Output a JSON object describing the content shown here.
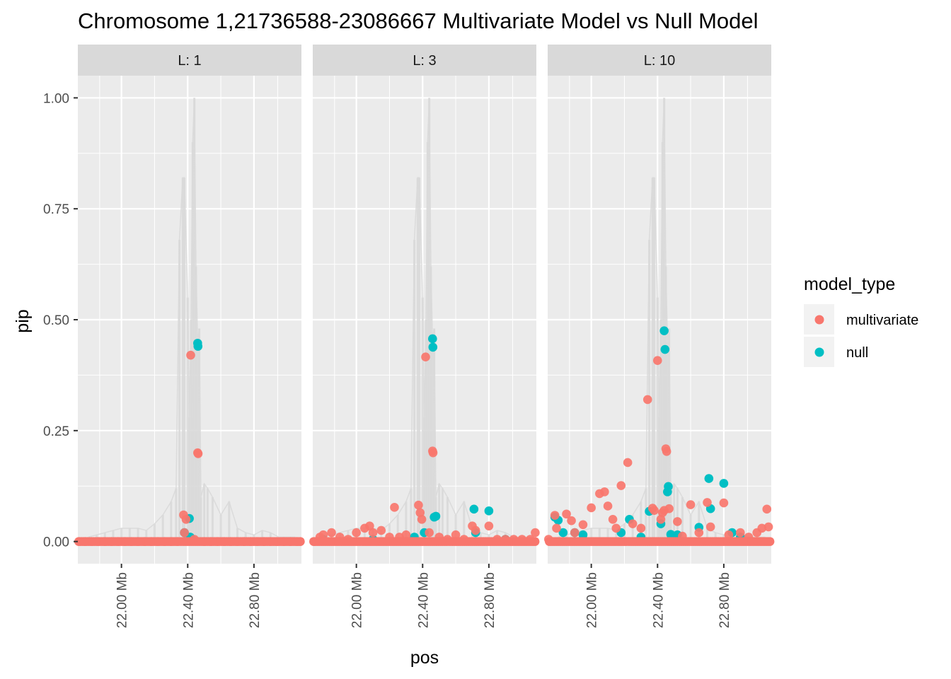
{
  "chart_data": {
    "type": "scatter",
    "title": "Chromosome 1,21736588-23086667 Multivariate Model vs Null Model",
    "xlabel": "pos",
    "ylabel": "pip",
    "xlim": [
      21736588,
      23086667
    ],
    "ylim": [
      -0.05,
      1.05
    ],
    "x_ticks": [
      22000000,
      22400000,
      22800000
    ],
    "x_tick_labels": [
      "22.00 Mb",
      "22.40 Mb",
      "22.80 Mb"
    ],
    "y_ticks": [
      0,
      0.25,
      0.5,
      0.75,
      1
    ],
    "y_tick_labels": [
      "0.00",
      "0.25",
      "0.50",
      "0.75",
      "1.00"
    ],
    "grid": true,
    "legend": {
      "title": "model_type",
      "position": "right",
      "entries": [
        {
          "label": "multivariate",
          "color": "#F8766D"
        },
        {
          "label": "null",
          "color": "#00BFC4"
        }
      ]
    },
    "background_series": {
      "description_color": "#d9d9d9",
      "x": [
        21800000,
        21850000,
        21900000,
        21950000,
        22000000,
        22050000,
        22100000,
        22150000,
        22200000,
        22250000,
        22300000,
        22330000,
        22350000,
        22370000,
        22380000,
        22400000,
        22410000,
        22420000,
        22430000,
        22440000,
        22450000,
        22460000,
        22470000,
        22480000,
        22500000,
        22520000,
        22550000,
        22600000,
        22650000,
        22700000,
        22750000,
        22800000,
        22850000,
        22900000,
        22950000,
        23000000,
        23050000
      ],
      "y": [
        0.01,
        0.015,
        0.02,
        0.025,
        0.03,
        0.03,
        0.03,
        0.025,
        0.04,
        0.06,
        0.09,
        0.12,
        0.68,
        0.82,
        0.82,
        0.55,
        0.28,
        0.5,
        0.9,
        1.0,
        0.62,
        0.45,
        0.48,
        0.1,
        0.13,
        0.12,
        0.1,
        0.06,
        0.09,
        0.03,
        0.02,
        0.015,
        0.025,
        0.02,
        0.01,
        0.01,
        0.01
      ]
    },
    "panels": [
      {
        "strip": "L: 1",
        "series": [
          {
            "name": "multivariate",
            "points": [
              [
                21742000,
                0
              ],
              [
                21780000,
                0
              ],
              [
                21820000,
                0
              ],
              [
                21860000,
                0
              ],
              [
                21900000,
                0
              ],
              [
                21940000,
                0
              ],
              [
                21980000,
                0
              ],
              [
                22020000,
                0
              ],
              [
                22060000,
                0
              ],
              [
                22100000,
                0
              ],
              [
                22140000,
                0
              ],
              [
                22180000,
                0
              ],
              [
                22220000,
                0
              ],
              [
                22260000,
                0
              ],
              [
                22300000,
                0
              ],
              [
                22340000,
                0
              ],
              [
                22375000,
                0.06
              ],
              [
                22380000,
                0.02
              ],
              [
                22390000,
                0.05
              ],
              [
                22418000,
                0.42
              ],
              [
                22460000,
                0.2
              ],
              [
                22463000,
                0.198
              ],
              [
                22440000,
                0.005
              ],
              [
                22500000,
                0
              ],
              [
                22540000,
                0
              ],
              [
                22580000,
                0
              ],
              [
                22620000,
                0
              ],
              [
                22660000,
                0
              ],
              [
                22700000,
                0
              ],
              [
                22740000,
                0
              ],
              [
                22780000,
                0
              ],
              [
                22820000,
                0
              ],
              [
                22860000,
                0
              ],
              [
                22900000,
                0
              ],
              [
                22940000,
                0
              ],
              [
                22980000,
                0
              ],
              [
                23020000,
                0
              ],
              [
                23060000,
                0
              ],
              [
                23080000,
                0
              ]
            ]
          },
          {
            "name": "null",
            "points": [
              [
                22380000,
                0.02
              ],
              [
                22410000,
                0.052
              ],
              [
                22460000,
                0.447
              ],
              [
                22462000,
                0.44
              ],
              [
                22415000,
                0.01
              ],
              [
                22425000,
                0.005
              ]
            ]
          }
        ]
      },
      {
        "strip": "L: 3",
        "series": [
          {
            "name": "multivariate",
            "points": [
              [
                21742000,
                0
              ],
              [
                21780000,
                0.01
              ],
              [
                21800000,
                0.015
              ],
              [
                21850000,
                0.02
              ],
              [
                21900000,
                0.01
              ],
              [
                21950000,
                0.005
              ],
              [
                22000000,
                0.02
              ],
              [
                22050000,
                0.03
              ],
              [
                22080000,
                0.035
              ],
              [
                22100000,
                0.02
              ],
              [
                22150000,
                0.025
              ],
              [
                22200000,
                0.01
              ],
              [
                22230000,
                0.077
              ],
              [
                22260000,
                0.01
              ],
              [
                22300000,
                0.015
              ],
              [
                22375000,
                0.082
              ],
              [
                22385000,
                0.065
              ],
              [
                22395000,
                0.05
              ],
              [
                22418000,
                0.416
              ],
              [
                22460000,
                0.204
              ],
              [
                22463000,
                0.2
              ],
              [
                22440000,
                0.02
              ],
              [
                22500000,
                0.01
              ],
              [
                22550000,
                0.005
              ],
              [
                22600000,
                0.015
              ],
              [
                22650000,
                0.005
              ],
              [
                22700000,
                0.035
              ],
              [
                22720000,
                0.025
              ],
              [
                22800000,
                0.035
              ],
              [
                22850000,
                0.005
              ],
              [
                22900000,
                0.005
              ],
              [
                22950000,
                0.005
              ],
              [
                23000000,
                0.005
              ],
              [
                23050000,
                0.005
              ],
              [
                23080000,
                0.02
              ]
            ]
          },
          {
            "name": "null",
            "points": [
              [
                21800000,
                0.005
              ],
              [
                22100000,
                0.005
              ],
              [
                22350000,
                0.01
              ],
              [
                22410000,
                0.02
              ],
              [
                22460000,
                0.457
              ],
              [
                22462000,
                0.438
              ],
              [
                22470000,
                0.055
              ],
              [
                22480000,
                0.057
              ],
              [
                22710000,
                0.073
              ],
              [
                22720000,
                0.02
              ],
              [
                22800000,
                0.069
              ],
              [
                22900000,
                0.005
              ]
            ]
          }
        ]
      },
      {
        "strip": "L: 10",
        "series": [
          {
            "name": "multivariate",
            "points": [
              [
                21742000,
                0.005
              ],
              [
                21780000,
                0.059
              ],
              [
                21790000,
                0.03
              ],
              [
                21850000,
                0.062
              ],
              [
                21880000,
                0.047
              ],
              [
                21900000,
                0.02
              ],
              [
                21950000,
                0.038
              ],
              [
                22000000,
                0.076
              ],
              [
                22050000,
                0.108
              ],
              [
                22080000,
                0.112
              ],
              [
                22100000,
                0.08
              ],
              [
                22130000,
                0.05
              ],
              [
                22150000,
                0.03
              ],
              [
                22180000,
                0.126
              ],
              [
                22220000,
                0.178
              ],
              [
                22250000,
                0.04
              ],
              [
                22300000,
                0.03
              ],
              [
                22340000,
                0.32
              ],
              [
                22370000,
                0.075
              ],
              [
                22380000,
                0.07
              ],
              [
                22400000,
                0.408
              ],
              [
                22420000,
                0.05
              ],
              [
                22430000,
                0.065
              ],
              [
                22440000,
                0.07
              ],
              [
                22450000,
                0.209
              ],
              [
                22455000,
                0.203
              ],
              [
                22470000,
                0.074
              ],
              [
                22520000,
                0.045
              ],
              [
                22550000,
                0.012
              ],
              [
                22600000,
                0.083
              ],
              [
                22650000,
                0.02
              ],
              [
                22700000,
                0.088
              ],
              [
                22720000,
                0.033
              ],
              [
                22800000,
                0.087
              ],
              [
                22830000,
                0.015
              ],
              [
                22900000,
                0.02
              ],
              [
                22950000,
                0.01
              ],
              [
                23000000,
                0.02
              ],
              [
                23030000,
                0.03
              ],
              [
                23060000,
                0.073
              ],
              [
                23070000,
                0.033
              ]
            ]
          },
          {
            "name": "null",
            "points": [
              [
                21780000,
                0.055
              ],
              [
                21800000,
                0.048
              ],
              [
                21830000,
                0.02
              ],
              [
                21900000,
                0.02
              ],
              [
                21950000,
                0.015
              ],
              [
                22180000,
                0.02
              ],
              [
                22230000,
                0.05
              ],
              [
                22300000,
                0.01
              ],
              [
                22350000,
                0.068
              ],
              [
                22420000,
                0.04
              ],
              [
                22440000,
                0.475
              ],
              [
                22445000,
                0.433
              ],
              [
                22460000,
                0.112
              ],
              [
                22465000,
                0.124
              ],
              [
                22480000,
                0.016
              ],
              [
                22520000,
                0.015
              ],
              [
                22650000,
                0.032
              ],
              [
                22710000,
                0.142
              ],
              [
                22720000,
                0.074
              ],
              [
                22800000,
                0.131
              ],
              [
                22850000,
                0.02
              ],
              [
                22900000,
                0.01
              ]
            ]
          }
        ]
      }
    ]
  }
}
